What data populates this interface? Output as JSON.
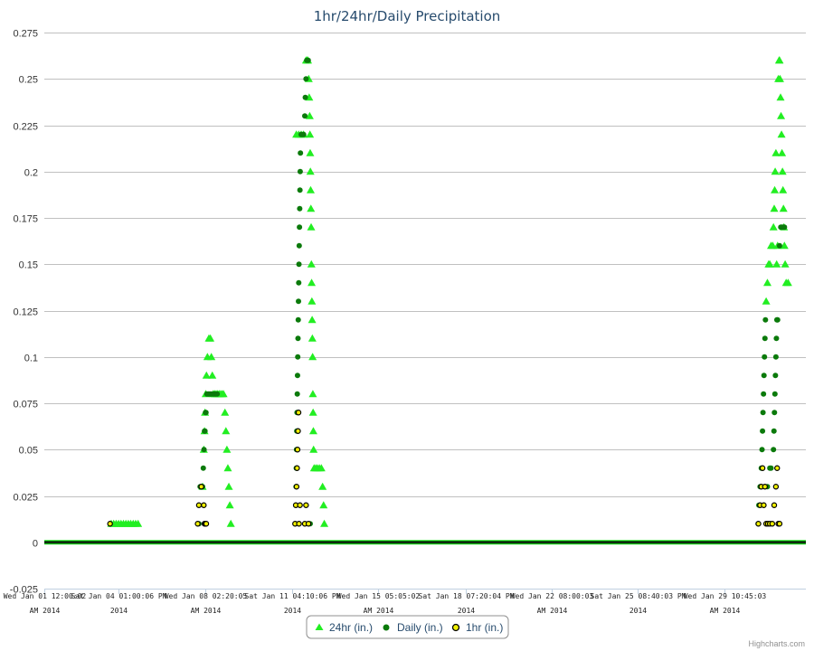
{
  "chart_data": {
    "type": "scatter",
    "title": "1hr/24hr/Daily Precipitation",
    "ylim": [
      -0.025,
      0.275
    ],
    "y_ticks": [
      "-0.025",
      "0",
      "0.025",
      "0.05",
      "0.075",
      "0.1",
      "0.125",
      "0.15",
      "0.175",
      "0.2",
      "0.225",
      "0.25",
      "0.275"
    ],
    "x_range_days": [
      1.5,
      32.78
    ],
    "x_ticks": [
      {
        "day": 1.5,
        "line1": "Wed Jan 01 12:00:02",
        "line2": "AM 2014"
      },
      {
        "day": 4.54,
        "line1": "Sat Jan 04 01:00:06 PM",
        "line2": "2014"
      },
      {
        "day": 8.1,
        "line1": "Wed Jan 08 02:20:05",
        "line2": "AM 2014"
      },
      {
        "day": 11.67,
        "line1": "Sat Jan 11 04:10:06 PM",
        "line2": "2014"
      },
      {
        "day": 15.21,
        "line1": "Wed Jan 15 05:05:02",
        "line2": "AM 2014"
      },
      {
        "day": 18.81,
        "line1": "Sat Jan 18 07:20:04 PM",
        "line2": "2014"
      },
      {
        "day": 22.33,
        "line1": "Wed Jan 22 08:00:03",
        "line2": "AM 2014"
      },
      {
        "day": 25.86,
        "line1": "Sat Jan 25 08:40:03 PM",
        "line2": "2014"
      },
      {
        "day": 29.45,
        "line1": "Wed Jan 29 10:45:03",
        "line2": "AM 2014"
      }
    ],
    "legend_placement": "bottom-center",
    "grid": true,
    "series": [
      {
        "name": "24hr (in.)",
        "color": "#22ee22",
        "marker": "triangle",
        "points": [
          [
            4.25,
            0.01
          ],
          [
            4.35,
            0.01
          ],
          [
            4.45,
            0.01
          ],
          [
            4.55,
            0.01
          ],
          [
            4.65,
            0.01
          ],
          [
            4.75,
            0.01
          ],
          [
            4.85,
            0.01
          ],
          [
            4.95,
            0.01
          ],
          [
            5.05,
            0.01
          ],
          [
            5.15,
            0.01
          ],
          [
            5.25,
            0.01
          ],
          [
            5.35,
            0.01
          ],
          [
            8.0,
            0.03
          ],
          [
            8.05,
            0.05
          ],
          [
            8.08,
            0.06
          ],
          [
            8.1,
            0.07
          ],
          [
            8.13,
            0.08
          ],
          [
            8.16,
            0.09
          ],
          [
            8.2,
            0.1
          ],
          [
            8.26,
            0.11
          ],
          [
            8.32,
            0.11
          ],
          [
            8.36,
            0.1
          ],
          [
            8.4,
            0.09
          ],
          [
            8.44,
            0.08
          ],
          [
            8.5,
            0.08
          ],
          [
            8.56,
            0.08
          ],
          [
            8.62,
            0.08
          ],
          [
            8.68,
            0.08
          ],
          [
            8.74,
            0.08
          ],
          [
            8.8,
            0.08
          ],
          [
            8.86,
            0.08
          ],
          [
            8.92,
            0.07
          ],
          [
            8.96,
            0.06
          ],
          [
            9.0,
            0.05
          ],
          [
            9.04,
            0.04
          ],
          [
            9.08,
            0.03
          ],
          [
            9.12,
            0.02
          ],
          [
            9.16,
            0.01
          ],
          [
            11.85,
            0.22
          ],
          [
            11.95,
            0.22
          ],
          [
            12.05,
            0.22
          ],
          [
            12.15,
            0.22
          ],
          [
            12.25,
            0.26
          ],
          [
            12.3,
            0.26
          ],
          [
            12.33,
            0.26
          ],
          [
            12.36,
            0.25
          ],
          [
            12.38,
            0.24
          ],
          [
            12.4,
            0.23
          ],
          [
            12.41,
            0.22
          ],
          [
            12.42,
            0.21
          ],
          [
            12.43,
            0.2
          ],
          [
            12.44,
            0.19
          ],
          [
            12.45,
            0.18
          ],
          [
            12.46,
            0.17
          ],
          [
            12.47,
            0.15
          ],
          [
            12.48,
            0.14
          ],
          [
            12.49,
            0.13
          ],
          [
            12.5,
            0.12
          ],
          [
            12.51,
            0.11
          ],
          [
            12.52,
            0.1
          ],
          [
            12.53,
            0.08
          ],
          [
            12.54,
            0.07
          ],
          [
            12.55,
            0.06
          ],
          [
            12.56,
            0.05
          ],
          [
            12.58,
            0.04
          ],
          [
            12.65,
            0.04
          ],
          [
            12.72,
            0.04
          ],
          [
            12.8,
            0.04
          ],
          [
            12.88,
            0.04
          ],
          [
            12.93,
            0.03
          ],
          [
            12.97,
            0.02
          ],
          [
            13.0,
            0.01
          ],
          [
            31.15,
            0.13
          ],
          [
            31.2,
            0.14
          ],
          [
            31.25,
            0.15
          ],
          [
            31.3,
            0.15
          ],
          [
            31.35,
            0.16
          ],
          [
            31.42,
            0.16
          ],
          [
            31.45,
            0.17
          ],
          [
            31.48,
            0.18
          ],
          [
            31.5,
            0.19
          ],
          [
            31.52,
            0.2
          ],
          [
            31.55,
            0.21
          ],
          [
            31.58,
            0.15
          ],
          [
            31.62,
            0.16
          ],
          [
            31.65,
            0.25
          ],
          [
            31.68,
            0.26
          ],
          [
            31.7,
            0.26
          ],
          [
            31.72,
            0.25
          ],
          [
            31.74,
            0.24
          ],
          [
            31.76,
            0.23
          ],
          [
            31.78,
            0.22
          ],
          [
            31.8,
            0.21
          ],
          [
            31.82,
            0.2
          ],
          [
            31.84,
            0.19
          ],
          [
            31.86,
            0.18
          ],
          [
            31.88,
            0.17
          ],
          [
            31.9,
            0.16
          ],
          [
            31.93,
            0.15
          ],
          [
            31.97,
            0.14
          ],
          [
            32.05,
            0.14
          ]
        ]
      },
      {
        "name": "Daily (in.)",
        "color": "#0b7a0b",
        "marker": "circle",
        "points": [
          [
            7.85,
            0.01
          ],
          [
            7.9,
            0.03
          ],
          [
            7.95,
            0.03
          ],
          [
            8.0,
            0.03
          ],
          [
            8.03,
            0.04
          ],
          [
            8.06,
            0.05
          ],
          [
            8.08,
            0.06
          ],
          [
            8.1,
            0.06
          ],
          [
            8.12,
            0.07
          ],
          [
            8.14,
            0.07
          ],
          [
            8.18,
            0.08
          ],
          [
            8.24,
            0.08
          ],
          [
            8.3,
            0.08
          ],
          [
            8.36,
            0.08
          ],
          [
            8.42,
            0.08
          ],
          [
            8.48,
            0.08
          ],
          [
            8.54,
            0.08
          ],
          [
            8.6,
            0.08
          ],
          [
            11.82,
            0.01
          ],
          [
            11.83,
            0.02
          ],
          [
            11.84,
            0.03
          ],
          [
            11.85,
            0.04
          ],
          [
            11.86,
            0.05
          ],
          [
            11.87,
            0.06
          ],
          [
            11.88,
            0.07
          ],
          [
            11.89,
            0.08
          ],
          [
            11.9,
            0.09
          ],
          [
            11.91,
            0.1
          ],
          [
            11.92,
            0.11
          ],
          [
            11.93,
            0.12
          ],
          [
            11.94,
            0.13
          ],
          [
            11.95,
            0.14
          ],
          [
            11.96,
            0.15
          ],
          [
            11.97,
            0.16
          ],
          [
            11.98,
            0.17
          ],
          [
            11.99,
            0.18
          ],
          [
            12.0,
            0.19
          ],
          [
            12.01,
            0.2
          ],
          [
            12.02,
            0.21
          ],
          [
            12.05,
            0.22
          ],
          [
            12.1,
            0.22
          ],
          [
            12.15,
            0.22
          ],
          [
            12.2,
            0.23
          ],
          [
            12.22,
            0.24
          ],
          [
            12.25,
            0.25
          ],
          [
            12.28,
            0.26
          ],
          [
            12.34,
            0.26
          ],
          [
            12.42,
            0.01
          ],
          [
            30.82,
            0.01
          ],
          [
            30.85,
            0.02
          ],
          [
            30.9,
            0.03
          ],
          [
            30.95,
            0.04
          ],
          [
            30.98,
            0.05
          ],
          [
            31.0,
            0.06
          ],
          [
            31.02,
            0.07
          ],
          [
            31.04,
            0.08
          ],
          [
            31.06,
            0.09
          ],
          [
            31.08,
            0.1
          ],
          [
            31.1,
            0.11
          ],
          [
            31.12,
            0.12
          ],
          [
            31.2,
            0.03
          ],
          [
            31.3,
            0.04
          ],
          [
            31.35,
            0.04
          ],
          [
            31.45,
            0.05
          ],
          [
            31.47,
            0.06
          ],
          [
            31.49,
            0.07
          ],
          [
            31.51,
            0.08
          ],
          [
            31.53,
            0.09
          ],
          [
            31.55,
            0.1
          ],
          [
            31.57,
            0.11
          ],
          [
            31.59,
            0.12
          ],
          [
            31.62,
            0.12
          ],
          [
            31.7,
            0.16
          ],
          [
            31.75,
            0.17
          ],
          [
            31.8,
            0.17
          ],
          [
            31.85,
            0.17
          ],
          [
            31.9,
            0.17
          ]
        ]
      },
      {
        "name": "1hr (in.)",
        "color": "#f0f000",
        "marker": "ring",
        "points": [
          [
            4.2,
            0.01
          ],
          [
            7.8,
            0.01
          ],
          [
            7.85,
            0.02
          ],
          [
            7.95,
            0.03
          ],
          [
            8.05,
            0.02
          ],
          [
            8.08,
            0.01
          ],
          [
            8.12,
            0.01
          ],
          [
            8.15,
            0.01
          ],
          [
            11.8,
            0.01
          ],
          [
            11.83,
            0.02
          ],
          [
            11.86,
            0.03
          ],
          [
            11.88,
            0.04
          ],
          [
            11.9,
            0.05
          ],
          [
            11.92,
            0.06
          ],
          [
            11.94,
            0.07
          ],
          [
            11.96,
            0.01
          ],
          [
            12.0,
            0.02
          ],
          [
            12.2,
            0.01
          ],
          [
            12.25,
            0.02
          ],
          [
            12.35,
            0.01
          ],
          [
            30.83,
            0.01
          ],
          [
            30.9,
            0.02
          ],
          [
            30.95,
            0.03
          ],
          [
            31.0,
            0.04
          ],
          [
            31.05,
            0.02
          ],
          [
            31.1,
            0.03
          ],
          [
            31.15,
            0.01
          ],
          [
            31.22,
            0.01
          ],
          [
            31.3,
            0.01
          ],
          [
            31.4,
            0.01
          ],
          [
            31.48,
            0.02
          ],
          [
            31.55,
            0.03
          ],
          [
            31.6,
            0.04
          ],
          [
            31.65,
            0.01
          ],
          [
            31.7,
            0.01
          ]
        ]
      }
    ],
    "credits": "Highcharts.com"
  }
}
